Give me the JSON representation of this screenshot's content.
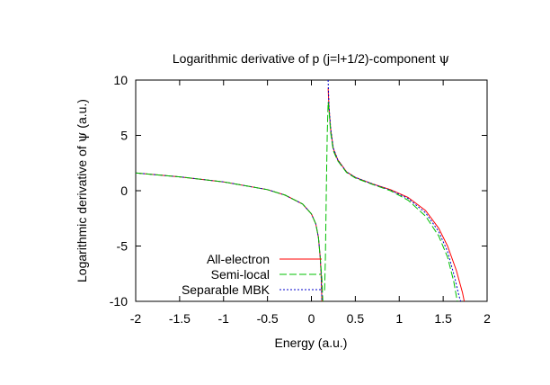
{
  "chart_data": {
    "type": "line",
    "title": {
      "text": "Logarithmic derivative of p (j=l+1/2)-component ",
      "symbol": "ψ"
    },
    "xlabel": "Energy (a.u.)",
    "ylabel": {
      "text": "Logarithmic derivative of ",
      "symbol": "ψ",
      "suffix": " (a.u.)"
    },
    "xlim": [
      -2,
      2
    ],
    "ylim": [
      -10,
      10
    ],
    "xticks": [
      -2,
      -1.5,
      -1,
      -0.5,
      0,
      0.5,
      1,
      1.5,
      2
    ],
    "xtick_labels": [
      "-2",
      "-1.5",
      "-1",
      "-0.5",
      "0",
      "0.5",
      "1",
      "1.5",
      "2"
    ],
    "yticks": [
      -10,
      -5,
      0,
      5,
      10
    ],
    "ytick_labels": [
      "-10",
      "-5",
      "0",
      "5",
      "10"
    ],
    "grid": false,
    "legend_position": "bottom-left",
    "series": [
      {
        "name": "All-electron",
        "color": "#ff0000",
        "dash": "",
        "branches": [
          [
            [
              -2,
              1.6
            ],
            [
              -1.5,
              1.25
            ],
            [
              -1,
              0.8
            ],
            [
              -0.5,
              0.1
            ],
            [
              -0.3,
              -0.4
            ],
            [
              -0.1,
              -1.2
            ],
            [
              0,
              -2.1
            ],
            [
              0.05,
              -3.0
            ],
            [
              0.08,
              -4.2
            ],
            [
              0.1,
              -6
            ],
            [
              0.11,
              -7.5
            ],
            [
              0.12,
              -10
            ]
          ],
          [
            [
              0.19,
              9.3
            ],
            [
              0.2,
              7.5
            ],
            [
              0.22,
              5.5
            ],
            [
              0.25,
              3.8
            ],
            [
              0.3,
              2.8
            ],
            [
              0.4,
              1.7
            ],
            [
              0.5,
              1.2
            ],
            [
              0.7,
              0.6
            ],
            [
              0.9,
              0.1
            ],
            [
              1.1,
              -0.6
            ],
            [
              1.3,
              -1.8
            ],
            [
              1.45,
              -3.4
            ],
            [
              1.55,
              -5
            ],
            [
              1.65,
              -7.2
            ],
            [
              1.72,
              -9.2
            ],
            [
              1.74,
              -10
            ]
          ]
        ]
      },
      {
        "name": "Semi-local",
        "color": "#00c000",
        "dash": "8,3",
        "branches": [
          [
            [
              -2,
              1.6
            ],
            [
              -1.5,
              1.25
            ],
            [
              -1,
              0.8
            ],
            [
              -0.5,
              0.1
            ],
            [
              -0.3,
              -0.4
            ],
            [
              -0.1,
              -1.2
            ],
            [
              0,
              -2.1
            ],
            [
              0.05,
              -3.0
            ],
            [
              0.08,
              -4.2
            ],
            [
              0.1,
              -6
            ],
            [
              0.12,
              -8
            ],
            [
              0.13,
              -10
            ]
          ],
          [
            [
              0.15,
              -9
            ],
            [
              0.16,
              -6
            ],
            [
              0.17,
              0
            ],
            [
              0.18,
              5
            ],
            [
              0.19,
              8
            ],
            [
              0.2,
              7.2
            ],
            [
              0.22,
              5.2
            ],
            [
              0.25,
              3.6
            ],
            [
              0.3,
              2.7
            ],
            [
              0.4,
              1.65
            ],
            [
              0.5,
              1.15
            ],
            [
              0.7,
              0.55
            ],
            [
              0.9,
              0.0
            ],
            [
              1.1,
              -0.85
            ],
            [
              1.3,
              -2.3
            ],
            [
              1.45,
              -4.1
            ],
            [
              1.55,
              -6
            ],
            [
              1.62,
              -8.2
            ],
            [
              1.66,
              -10
            ]
          ]
        ]
      },
      {
        "name": "Separable MBK",
        "color": "#0000cc",
        "dash": "2,2",
        "branches": [
          [
            [
              -2,
              1.6
            ],
            [
              -1.5,
              1.25
            ],
            [
              -1,
              0.8
            ],
            [
              -0.5,
              0.1
            ],
            [
              -0.3,
              -0.4
            ],
            [
              -0.1,
              -1.2
            ],
            [
              0,
              -2.1
            ],
            [
              0.05,
              -3.0
            ],
            [
              0.08,
              -4.2
            ],
            [
              0.1,
              -6
            ],
            [
              0.11,
              -7.5
            ],
            [
              0.12,
              -10
            ]
          ],
          [
            [
              0.19,
              10
            ],
            [
              0.2,
              7.6
            ],
            [
              0.22,
              5.6
            ],
            [
              0.25,
              3.85
            ],
            [
              0.3,
              2.8
            ],
            [
              0.4,
              1.7
            ],
            [
              0.5,
              1.2
            ],
            [
              0.7,
              0.6
            ],
            [
              0.9,
              0.05
            ],
            [
              1.1,
              -0.7
            ],
            [
              1.3,
              -2.0
            ],
            [
              1.45,
              -3.7
            ],
            [
              1.55,
              -5.5
            ],
            [
              1.63,
              -7.8
            ],
            [
              1.68,
              -9.5
            ],
            [
              1.7,
              -10
            ]
          ]
        ]
      }
    ]
  }
}
